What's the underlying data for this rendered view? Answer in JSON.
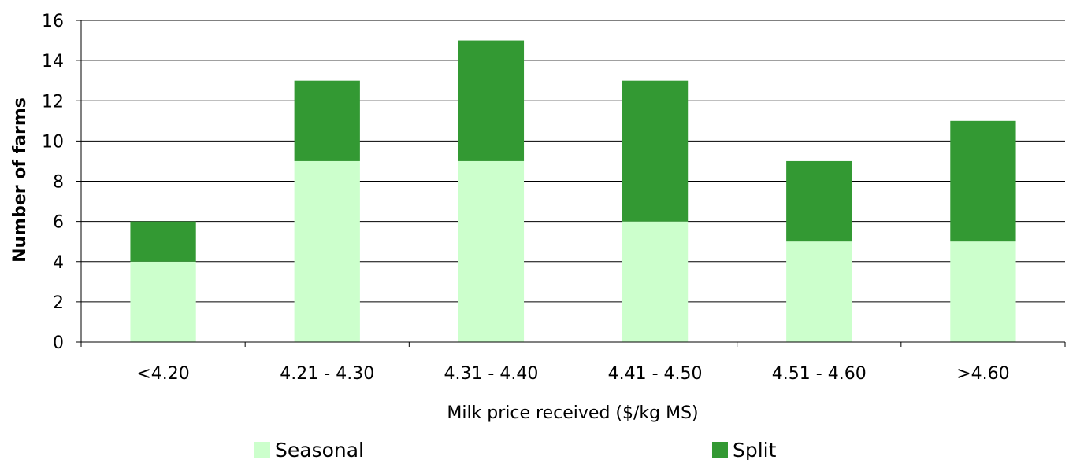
{
  "chart_data": {
    "type": "bar",
    "stacked": true,
    "title": "",
    "xlabel": "Milk price received ($/kg MS)",
    "ylabel": "Number of farms",
    "categories": [
      "<4.20",
      "4.21 - 4.30",
      "4.31 - 4.40",
      "4.41 - 4.50",
      "4.51 - 4.60",
      ">4.60"
    ],
    "series": [
      {
        "name": "Seasonal",
        "values": [
          4,
          9,
          9,
          6,
          5,
          5
        ],
        "color": "#ccffcc"
      },
      {
        "name": "Split",
        "values": [
          2,
          4,
          6,
          7,
          4,
          6
        ],
        "color": "#339933"
      }
    ],
    "ylim": [
      0,
      16
    ],
    "yticks": [
      0,
      2,
      4,
      6,
      8,
      10,
      12,
      14,
      16
    ],
    "grid": true,
    "legend": "bottom"
  }
}
